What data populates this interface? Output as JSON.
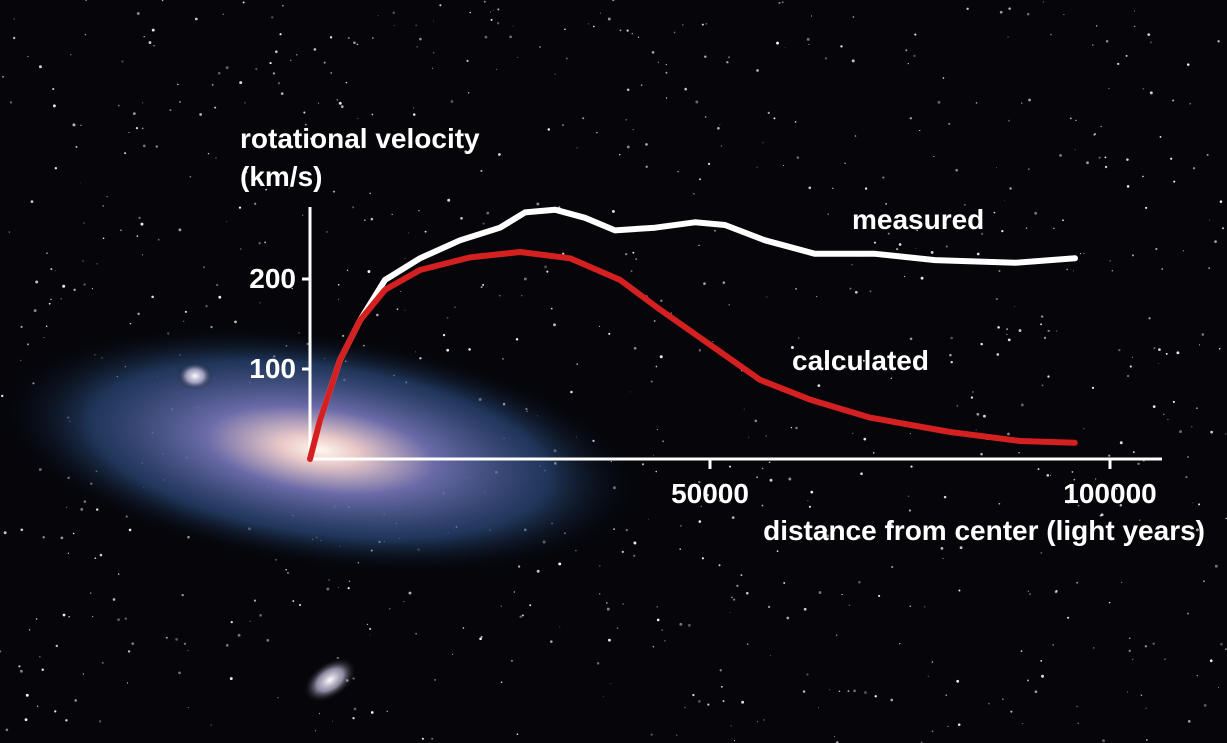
{
  "chart_data": {
    "type": "line",
    "ylabel": [
      "rotational velocity",
      "(km/s)"
    ],
    "xlabel": "distance from center (light years)",
    "xlim": [
      0,
      106500
    ],
    "ylim": [
      0,
      280
    ],
    "xticks": [
      50000,
      100000
    ],
    "yticks": [
      100,
      200
    ],
    "series": [
      {
        "name": "measured",
        "color": "#ffffff",
        "x": [
          0,
          1250,
          3750,
          6250,
          9375,
          13750,
          18750,
          23750,
          26875,
          30625,
          34375,
          38125,
          43125,
          48125,
          51875,
          56875,
          63125,
          70625,
          78125,
          88125,
          95625
        ],
        "values": [
          0,
          43,
          110,
          154,
          199,
          223,
          243,
          257,
          274,
          277,
          268,
          254,
          257,
          263,
          260,
          243,
          228,
          228,
          221,
          218,
          223
        ]
      },
      {
        "name": "calculated",
        "color": "#d42020",
        "x": [
          0,
          1250,
          3750,
          6250,
          9375,
          13750,
          20000,
          26250,
          32500,
          38750,
          43750,
          50000,
          56250,
          62500,
          70000,
          80000,
          88750,
          95600
        ],
        "values": [
          0,
          43,
          110,
          154,
          188,
          210,
          224,
          230,
          223,
          199,
          166,
          127,
          88,
          66,
          46,
          30,
          20,
          18
        ]
      }
    ]
  }
}
